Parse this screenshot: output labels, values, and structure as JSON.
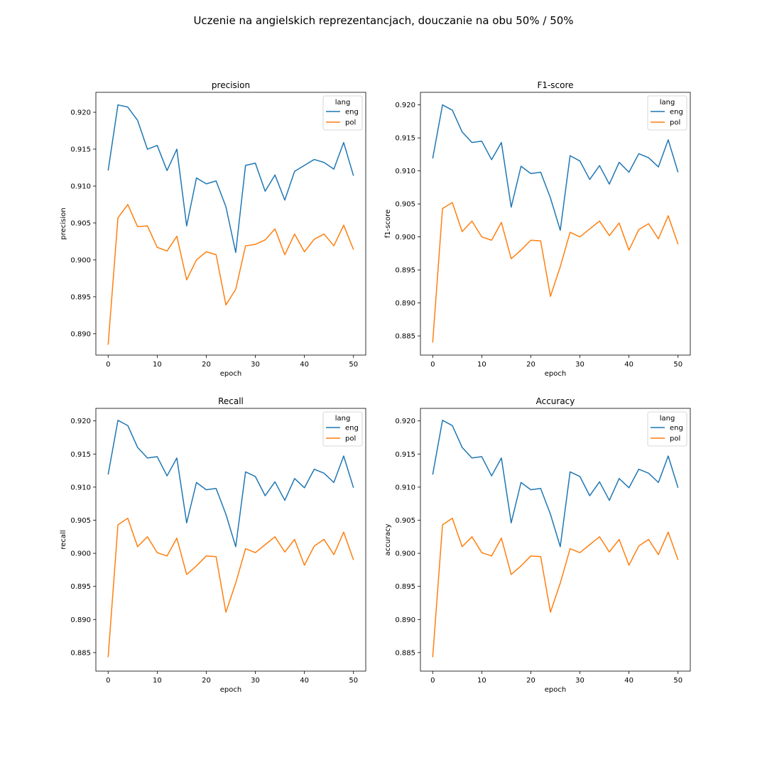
{
  "figure_title": "Uczenie na angielskich reprezentancjach, douczanie na obu 50% / 50%",
  "colors": {
    "eng": "#1f77b4",
    "pol": "#ff7f0e"
  },
  "chart_data": [
    {
      "type": "line",
      "title": "precision",
      "xlabel": "epoch",
      "ylabel": "precision",
      "xlim": [
        -2.5,
        52.5
      ],
      "ylim": [
        0.8871,
        0.9227
      ],
      "xticks": [
        0,
        10,
        20,
        30,
        40,
        50
      ],
      "yticks": [
        0.89,
        0.895,
        0.9,
        0.905,
        0.91,
        0.915,
        0.92
      ],
      "ytick_labels": [
        "0.890",
        "0.895",
        "0.900",
        "0.905",
        "0.910",
        "0.915",
        "0.920"
      ],
      "legend": {
        "title": "lang",
        "position": "upper right"
      },
      "x": [
        0,
        2,
        4,
        6,
        8,
        10,
        12,
        14,
        16,
        18,
        20,
        22,
        24,
        26,
        28,
        30,
        32,
        34,
        36,
        38,
        40,
        42,
        44,
        46,
        48,
        50
      ],
      "series": [
        {
          "name": "eng",
          "color": "#1f77b4",
          "values": [
            0.9121,
            0.921,
            0.9207,
            0.9189,
            0.915,
            0.9155,
            0.9121,
            0.915,
            0.9046,
            0.9111,
            0.9103,
            0.9107,
            0.9072,
            0.901,
            0.9128,
            0.9131,
            0.9093,
            0.9115,
            0.9081,
            0.912,
            0.9128,
            0.9136,
            0.9132,
            0.9123,
            0.9159,
            0.9114
          ]
        },
        {
          "name": "pol",
          "color": "#ff7f0e",
          "values": [
            0.8885,
            0.9057,
            0.9075,
            0.9045,
            0.9046,
            0.9017,
            0.9012,
            0.9032,
            0.8973,
            0.9,
            0.9011,
            0.9007,
            0.8939,
            0.896,
            0.9019,
            0.9021,
            0.9027,
            0.9042,
            0.9007,
            0.9035,
            0.9011,
            0.9028,
            0.9035,
            0.9019,
            0.9047,
            0.9014
          ]
        }
      ]
    },
    {
      "type": "line",
      "title": "F1-score",
      "xlabel": "epoch",
      "ylabel": "f1-score",
      "xlim": [
        -2.5,
        52.5
      ],
      "ylim": [
        0.8821,
        0.9219
      ],
      "xticks": [
        0,
        10,
        20,
        30,
        40,
        50
      ],
      "yticks": [
        0.885,
        0.89,
        0.895,
        0.9,
        0.905,
        0.91,
        0.915,
        0.92
      ],
      "ytick_labels": [
        "0.885",
        "0.890",
        "0.895",
        "0.900",
        "0.905",
        "0.910",
        "0.915",
        "0.920"
      ],
      "legend": {
        "title": "lang",
        "position": "upper right"
      },
      "x": [
        0,
        2,
        4,
        6,
        8,
        10,
        12,
        14,
        16,
        18,
        20,
        22,
        24,
        26,
        28,
        30,
        32,
        34,
        36,
        38,
        40,
        42,
        44,
        46,
        48,
        50
      ],
      "series": [
        {
          "name": "eng",
          "color": "#1f77b4",
          "values": [
            0.9119,
            0.92,
            0.9192,
            0.9159,
            0.9143,
            0.9145,
            0.9117,
            0.9143,
            0.9045,
            0.9107,
            0.9096,
            0.9098,
            0.9059,
            0.901,
            0.9123,
            0.9115,
            0.9087,
            0.9108,
            0.908,
            0.9113,
            0.9098,
            0.9126,
            0.912,
            0.9106,
            0.9147,
            0.9098
          ]
        },
        {
          "name": "pol",
          "color": "#ff7f0e",
          "values": [
            0.884,
            0.9043,
            0.9052,
            0.9008,
            0.9024,
            0.9,
            0.8995,
            0.9022,
            0.8967,
            0.898,
            0.8995,
            0.8994,
            0.891,
            0.8955,
            0.9007,
            0.9,
            0.9012,
            0.9024,
            0.9002,
            0.9021,
            0.898,
            0.9011,
            0.902,
            0.8997,
            0.9032,
            0.8989
          ]
        }
      ]
    },
    {
      "type": "line",
      "title": "Recall",
      "xlabel": "epoch",
      "ylabel": "recall",
      "xlim": [
        -2.5,
        52.5
      ],
      "ylim": [
        0.8822,
        0.9219
      ],
      "xticks": [
        0,
        10,
        20,
        30,
        40,
        50
      ],
      "yticks": [
        0.885,
        0.89,
        0.895,
        0.9,
        0.905,
        0.91,
        0.915,
        0.92
      ],
      "ytick_labels": [
        "0.885",
        "0.890",
        "0.895",
        "0.900",
        "0.905",
        "0.910",
        "0.915",
        "0.920"
      ],
      "legend": {
        "title": "lang",
        "position": "upper right"
      },
      "x": [
        0,
        2,
        4,
        6,
        8,
        10,
        12,
        14,
        16,
        18,
        20,
        22,
        24,
        26,
        28,
        30,
        32,
        34,
        36,
        38,
        40,
        42,
        44,
        46,
        48,
        50
      ],
      "series": [
        {
          "name": "eng",
          "color": "#1f77b4",
          "values": [
            0.9119,
            0.9201,
            0.9193,
            0.916,
            0.9144,
            0.9146,
            0.9117,
            0.9144,
            0.9046,
            0.9107,
            0.9096,
            0.9098,
            0.9059,
            0.901,
            0.9123,
            0.9116,
            0.9087,
            0.9108,
            0.908,
            0.9113,
            0.9099,
            0.9127,
            0.9121,
            0.9107,
            0.9147,
            0.9099
          ]
        },
        {
          "name": "pol",
          "color": "#ff7f0e",
          "values": [
            0.8843,
            0.9043,
            0.9053,
            0.901,
            0.9025,
            0.9001,
            0.8996,
            0.9023,
            0.8968,
            0.8981,
            0.8996,
            0.8995,
            0.8911,
            0.8955,
            0.9007,
            0.9001,
            0.9013,
            0.9025,
            0.9002,
            0.9021,
            0.8982,
            0.9011,
            0.9021,
            0.8998,
            0.9032,
            0.899
          ]
        }
      ]
    },
    {
      "type": "line",
      "title": "Accuracy",
      "xlabel": "epoch",
      "ylabel": "accuracy",
      "xlim": [
        -2.5,
        52.5
      ],
      "ylim": [
        0.8822,
        0.9219
      ],
      "xticks": [
        0,
        10,
        20,
        30,
        40,
        50
      ],
      "yticks": [
        0.885,
        0.89,
        0.895,
        0.9,
        0.905,
        0.91,
        0.915,
        0.92
      ],
      "ytick_labels": [
        "0.885",
        "0.890",
        "0.895",
        "0.900",
        "0.905",
        "0.910",
        "0.915",
        "0.920"
      ],
      "legend": {
        "title": "lang",
        "position": "upper right"
      },
      "x": [
        0,
        2,
        4,
        6,
        8,
        10,
        12,
        14,
        16,
        18,
        20,
        22,
        24,
        26,
        28,
        30,
        32,
        34,
        36,
        38,
        40,
        42,
        44,
        46,
        48,
        50
      ],
      "series": [
        {
          "name": "eng",
          "color": "#1f77b4",
          "values": [
            0.9119,
            0.9201,
            0.9193,
            0.916,
            0.9144,
            0.9146,
            0.9117,
            0.9144,
            0.9046,
            0.9107,
            0.9096,
            0.9098,
            0.9059,
            0.901,
            0.9123,
            0.9116,
            0.9087,
            0.9108,
            0.908,
            0.9113,
            0.9099,
            0.9127,
            0.9121,
            0.9107,
            0.9147,
            0.9099
          ]
        },
        {
          "name": "pol",
          "color": "#ff7f0e",
          "values": [
            0.8843,
            0.9043,
            0.9053,
            0.901,
            0.9025,
            0.9001,
            0.8996,
            0.9023,
            0.8968,
            0.8981,
            0.8996,
            0.8995,
            0.8911,
            0.8955,
            0.9007,
            0.9001,
            0.9013,
            0.9025,
            0.9002,
            0.9021,
            0.8982,
            0.9011,
            0.9021,
            0.8998,
            0.9032,
            0.899
          ]
        }
      ]
    }
  ]
}
